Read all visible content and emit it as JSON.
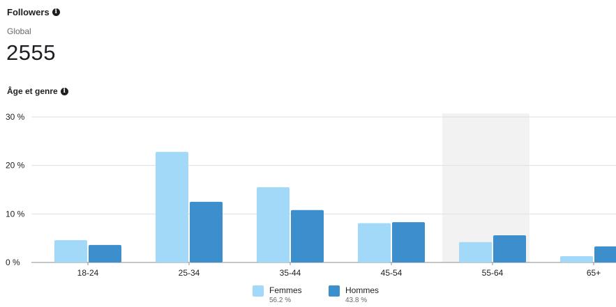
{
  "header": {
    "title": "Followers",
    "info_icon": "info-icon",
    "scope": "Global",
    "total": "2555"
  },
  "section": {
    "title": "Âge et genre",
    "info_icon": "info-icon"
  },
  "chart_data": {
    "type": "bar",
    "categories": [
      "18-24",
      "25-34",
      "35-44",
      "45-54",
      "55-64",
      "65+"
    ],
    "series": [
      {
        "name": "Femmes",
        "values": [
          4.6,
          22.8,
          15.5,
          8.1,
          4.2,
          1.3
        ],
        "color": "#a3d9f8",
        "share": "56.2 %"
      },
      {
        "name": "Hommes",
        "values": [
          3.6,
          12.5,
          10.8,
          8.3,
          5.6,
          3.3
        ],
        "color": "#3d8ecc",
        "share": "43.8 %"
      }
    ],
    "yticks": [
      "0 %",
      "10 %",
      "20 %",
      "30 %"
    ],
    "ylim": [
      0,
      30
    ],
    "highlighted_category": "55-64",
    "grid": true,
    "legend": "bottom-center"
  }
}
